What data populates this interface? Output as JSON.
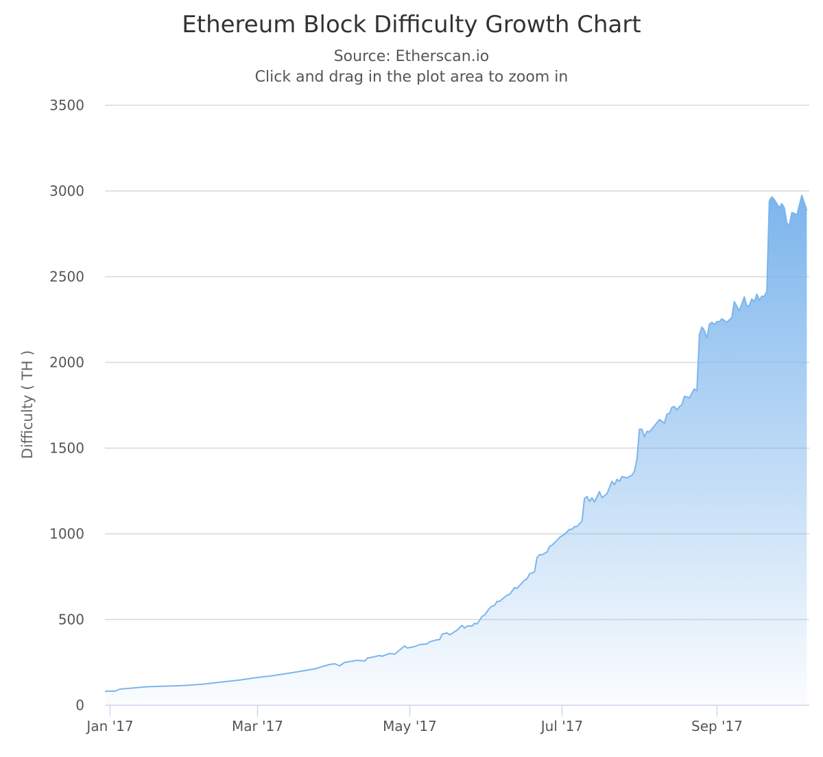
{
  "chart_data": {
    "type": "area",
    "title": "Ethereum Block Difficulty Growth Chart",
    "subtitle": "Source: Etherscan.io",
    "subtitle2": "Click and drag in the plot area to zoom in",
    "xlabel": "",
    "ylabel": "Difficulty ( TH )",
    "ylim": [
      0,
      3500
    ],
    "xlim": [
      "2016-12-30",
      "2017-10-08"
    ],
    "y_ticks": [
      "0",
      "500",
      "1000",
      "1500",
      "2000",
      "2500",
      "3000",
      "3500"
    ],
    "x_ticks": [
      {
        "date": "2017-01-01",
        "label": "Jan '17"
      },
      {
        "date": "2017-03-01",
        "label": "Mar '17"
      },
      {
        "date": "2017-05-01",
        "label": "May '17"
      },
      {
        "date": "2017-07-01",
        "label": "Jul '17"
      },
      {
        "date": "2017-09-01",
        "label": "Sep '17"
      }
    ],
    "grid": true,
    "legend": "none",
    "colors": {
      "line": "#7cb5ec",
      "fill_top": "#7cb5ec",
      "grid": "#d8d8d8",
      "axis": "#ccd6eb"
    },
    "series": [
      {
        "points": [
          [
            "2016-12-30",
            80
          ],
          [
            "2017-01-03",
            80
          ],
          [
            "2017-01-05",
            92
          ],
          [
            "2017-01-16",
            106
          ],
          [
            "2017-01-25",
            110
          ],
          [
            "2017-02-01",
            114
          ],
          [
            "2017-02-08",
            122
          ],
          [
            "2017-02-15",
            134
          ],
          [
            "2017-02-22",
            145
          ],
          [
            "2017-03-01",
            160
          ],
          [
            "2017-03-07",
            170
          ],
          [
            "2017-03-15",
            188
          ],
          [
            "2017-03-24",
            210
          ],
          [
            "2017-03-30",
            236
          ],
          [
            "2017-04-01",
            240
          ],
          [
            "2017-04-03",
            228
          ],
          [
            "2017-04-05",
            248
          ],
          [
            "2017-04-10",
            260
          ],
          [
            "2017-04-13",
            256
          ],
          [
            "2017-04-14",
            272
          ],
          [
            "2017-04-19",
            288
          ],
          [
            "2017-04-20",
            284
          ],
          [
            "2017-04-23",
            300
          ],
          [
            "2017-04-25",
            296
          ],
          [
            "2017-04-27",
            320
          ],
          [
            "2017-04-29",
            344
          ],
          [
            "2017-04-30",
            332
          ],
          [
            "2017-05-03",
            340
          ],
          [
            "2017-05-05",
            352
          ],
          [
            "2017-05-08",
            356
          ],
          [
            "2017-05-09",
            368
          ],
          [
            "2017-05-12",
            380
          ],
          [
            "2017-05-13",
            380
          ],
          [
            "2017-05-14",
            412
          ],
          [
            "2017-05-16",
            420
          ],
          [
            "2017-05-17",
            408
          ],
          [
            "2017-05-20",
            436
          ],
          [
            "2017-05-22",
            464
          ],
          [
            "2017-05-23",
            448
          ],
          [
            "2017-05-24",
            460
          ],
          [
            "2017-05-26",
            460
          ],
          [
            "2017-05-27",
            476
          ],
          [
            "2017-05-28",
            472
          ],
          [
            "2017-05-30",
            516
          ],
          [
            "2017-05-31",
            524
          ],
          [
            "2017-06-02",
            564
          ],
          [
            "2017-06-03",
            576
          ],
          [
            "2017-06-04",
            580
          ],
          [
            "2017-06-05",
            604
          ],
          [
            "2017-06-06",
            604
          ],
          [
            "2017-06-09",
            640
          ],
          [
            "2017-06-10",
            644
          ],
          [
            "2017-06-12",
            684
          ],
          [
            "2017-06-13",
            680
          ],
          [
            "2017-06-16",
            728
          ],
          [
            "2017-06-17",
            736
          ],
          [
            "2017-06-18",
            764
          ],
          [
            "2017-06-20",
            776
          ],
          [
            "2017-06-21",
            860
          ],
          [
            "2017-06-22",
            876
          ],
          [
            "2017-06-23",
            876
          ],
          [
            "2017-06-25",
            892
          ],
          [
            "2017-06-26",
            924
          ],
          [
            "2017-06-27",
            932
          ],
          [
            "2017-06-29",
            960
          ],
          [
            "2017-06-30",
            976
          ],
          [
            "2017-07-02",
            996
          ],
          [
            "2017-07-04",
            1024
          ],
          [
            "2017-07-05",
            1024
          ],
          [
            "2017-07-06",
            1040
          ],
          [
            "2017-07-07",
            1040
          ],
          [
            "2017-07-09",
            1072
          ],
          [
            "2017-07-10",
            1204
          ],
          [
            "2017-07-11",
            1216
          ],
          [
            "2017-07-12",
            1188
          ],
          [
            "2017-07-13",
            1208
          ],
          [
            "2017-07-14",
            1184
          ],
          [
            "2017-07-16",
            1244
          ],
          [
            "2017-07-17",
            1208
          ],
          [
            "2017-07-19",
            1232
          ],
          [
            "2017-07-21",
            1304
          ],
          [
            "2017-07-22",
            1284
          ],
          [
            "2017-07-23",
            1316
          ],
          [
            "2017-07-24",
            1304
          ],
          [
            "2017-07-25",
            1332
          ],
          [
            "2017-07-27",
            1324
          ],
          [
            "2017-07-29",
            1340
          ],
          [
            "2017-07-30",
            1364
          ],
          [
            "2017-07-31",
            1432
          ],
          [
            "2017-08-01",
            1608
          ],
          [
            "2017-08-02",
            1608
          ],
          [
            "2017-08-03",
            1564
          ],
          [
            "2017-08-04",
            1596
          ],
          [
            "2017-08-05",
            1592
          ],
          [
            "2017-08-09",
            1664
          ],
          [
            "2017-08-11",
            1644
          ],
          [
            "2017-08-12",
            1696
          ],
          [
            "2017-08-13",
            1700
          ],
          [
            "2017-08-14",
            1736
          ],
          [
            "2017-08-15",
            1740
          ],
          [
            "2017-08-16",
            1720
          ],
          [
            "2017-08-17",
            1740
          ],
          [
            "2017-08-18",
            1752
          ],
          [
            "2017-08-19",
            1800
          ],
          [
            "2017-08-21",
            1792
          ],
          [
            "2017-08-23",
            1844
          ],
          [
            "2017-08-24",
            1832
          ],
          [
            "2017-08-25",
            2160
          ],
          [
            "2017-08-26",
            2204
          ],
          [
            "2017-08-27",
            2184
          ],
          [
            "2017-08-28",
            2140
          ],
          [
            "2017-08-29",
            2220
          ],
          [
            "2017-08-30",
            2232
          ],
          [
            "2017-08-31",
            2220
          ],
          [
            "2017-09-01",
            2236
          ],
          [
            "2017-09-02",
            2236
          ],
          [
            "2017-09-03",
            2252
          ],
          [
            "2017-09-05",
            2232
          ],
          [
            "2017-09-07",
            2260
          ],
          [
            "2017-09-08",
            2352
          ],
          [
            "2017-09-10",
            2300
          ],
          [
            "2017-09-12",
            2380
          ],
          [
            "2017-09-13",
            2324
          ],
          [
            "2017-09-14",
            2332
          ],
          [
            "2017-09-15",
            2368
          ],
          [
            "2017-09-16",
            2352
          ],
          [
            "2017-09-17",
            2396
          ],
          [
            "2017-09-18",
            2360
          ],
          [
            "2017-09-19",
            2384
          ],
          [
            "2017-09-20",
            2384
          ],
          [
            "2017-09-21",
            2412
          ],
          [
            "2017-09-22",
            2940
          ],
          [
            "2017-09-23",
            2964
          ],
          [
            "2017-09-24",
            2948
          ],
          [
            "2017-09-26",
            2900
          ],
          [
            "2017-09-27",
            2924
          ],
          [
            "2017-09-28",
            2900
          ],
          [
            "2017-09-29",
            2812
          ],
          [
            "2017-09-30",
            2796
          ],
          [
            "2017-10-01",
            2872
          ],
          [
            "2017-10-02",
            2868
          ],
          [
            "2017-10-03",
            2856
          ],
          [
            "2017-10-05",
            2972
          ],
          [
            "2017-10-07",
            2884
          ]
        ]
      }
    ]
  }
}
